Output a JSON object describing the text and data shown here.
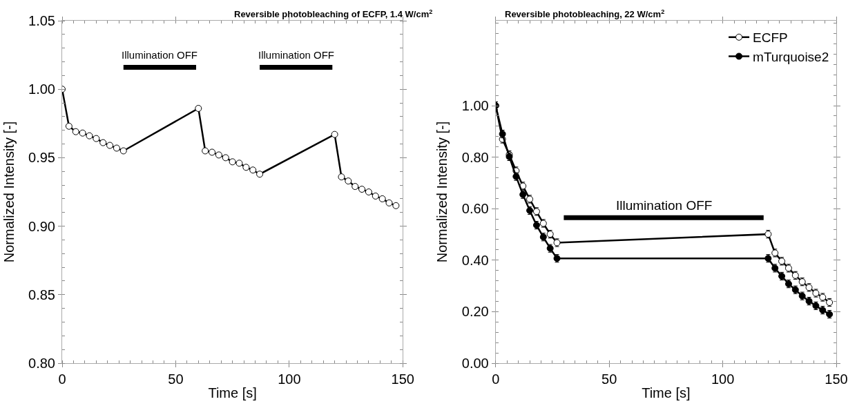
{
  "chart_data": [
    {
      "type": "line",
      "title": "Reversible photobleaching of ECFP, 1.4 W/cm$^{2}$",
      "xlabel": "Time [s]",
      "ylabel": "Normalized Intensity [-]",
      "x": [
        0,
        3,
        6,
        9,
        12,
        15,
        18,
        21,
        24,
        27,
        60,
        63,
        66,
        69,
        72,
        75,
        78,
        81,
        84,
        87,
        120,
        123,
        126,
        129,
        132,
        135,
        138,
        141,
        144,
        147
      ],
      "series": [
        {
          "color": "#000000",
          "marker": "circle",
          "values": [
            1.0,
            0.973,
            0.969,
            0.968,
            0.966,
            0.964,
            0.961,
            0.959,
            0.957,
            0.955,
            0.986,
            0.955,
            0.954,
            0.952,
            0.95,
            0.947,
            0.946,
            0.943,
            0.941,
            0.938,
            0.967,
            0.936,
            0.933,
            0.929,
            0.927,
            0.925,
            0.922,
            0.92,
            0.917,
            0.915
          ]
        },
        {
          "color": "#000000",
          "marker": "none",
          "x": [
            27,
            59
          ],
          "values": [
            1.016,
            1.016
          ]
        },
        {
          "color": "#000000",
          "marker": "none",
          "x": [
            87,
            119
          ],
          "values": [
            1.016,
            1.016
          ]
        }
      ],
      "annotations": [
        {
          "text": "Illumination OFF",
          "x": 43,
          "y": 1.02
        },
        {
          "text": "Illumination OFF",
          "x": 103,
          "y": 1.02
        }
      ],
      "xlim": [
        0,
        150
      ],
      "xticks": [
        0,
        50,
        100,
        150
      ],
      "ylim": [
        0.8,
        1.05
      ],
      "yticks": [
        {
          "value": 0.8,
          "label": "0.80"
        },
        {
          "value": 0.85,
          "label": "0.85"
        },
        {
          "value": 0.9,
          "label": "0.90"
        },
        {
          "value": 0.95,
          "label": "0.95"
        },
        {
          "value": 1.0,
          "label": "1.00"
        },
        {
          "value": 1.05,
          "label": "1.05"
        }
      ],
      "legend": false,
      "line_style": "solid"
    },
    {
      "type": "line",
      "title": "Reversible photobleaching, 22 W/cm$^{2}$",
      "xlabel": "Time [s]",
      "ylabel": "Normalized Intensity [-]",
      "x": [
        0,
        3,
        6,
        9,
        12,
        15,
        18,
        21,
        24,
        27,
        120,
        123,
        126,
        129,
        132,
        135,
        138,
        141,
        144,
        147
      ],
      "series": [
        {
          "name": "ECFP",
          "color": "#000000",
          "marker": "circle",
          "values": [
            1.0,
            0.87,
            0.81,
            0.747,
            0.688,
            0.637,
            0.589,
            0.543,
            0.501,
            0.468,
            0.501,
            0.428,
            0.396,
            0.369,
            0.341,
            0.316,
            0.294,
            0.272,
            0.256,
            0.236
          ],
          "errors": [
            0.015,
            0.015,
            0.015,
            0.015,
            0.015,
            0.015,
            0.015,
            0.015,
            0.015,
            0.015,
            0.015,
            0.015,
            0.015,
            0.015,
            0.015,
            0.015,
            0.015,
            0.015,
            0.015,
            0.015
          ]
        },
        {
          "name": "mTurquoise2",
          "color": "#000000",
          "marker": "circle",
          "values": [
            1.0,
            0.89,
            0.802,
            0.725,
            0.655,
            0.593,
            0.536,
            0.49,
            0.446,
            0.407,
            0.407,
            0.369,
            0.338,
            0.308,
            0.285,
            0.261,
            0.241,
            0.223,
            0.206,
            0.19
          ],
          "errors": [
            0.015,
            0.015,
            0.015,
            0.015,
            0.015,
            0.015,
            0.015,
            0.015,
            0.015,
            0.015,
            0.015,
            0.015,
            0.015,
            0.015,
            0.015,
            0.015,
            0.015,
            0.015,
            0.015,
            0.015
          ]
        },
        {
          "color": "#000000",
          "marker": "none",
          "x": [
            30,
            118
          ],
          "values": [
            0.565,
            0.565
          ]
        }
      ],
      "annotations": [
        {
          "text": "Illumination OFF",
          "x": 74,
          "y": 0.58
        }
      ],
      "xlim": [
        0,
        150
      ],
      "xticks": [
        0,
        50,
        100,
        150
      ],
      "ylim": [
        0,
        1.33
      ],
      "yticks": [
        {
          "value": 0,
          "label": "0.00"
        },
        {
          "value": 0.2,
          "label": "0.20"
        },
        {
          "value": 0.4,
          "label": "0.40"
        },
        {
          "value": 0.6,
          "label": "0.60"
        },
        {
          "value": 0.8,
          "label": "0.80"
        },
        {
          "value": 1.0,
          "label": "1.00"
        }
      ],
      "legend": "top right",
      "line_style": "solid"
    }
  ]
}
